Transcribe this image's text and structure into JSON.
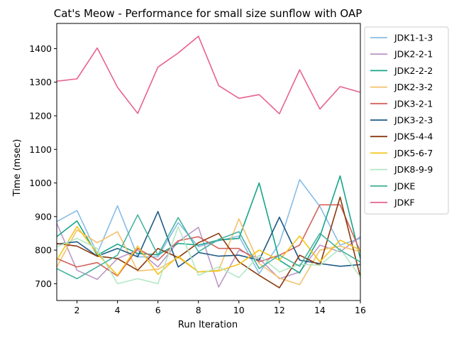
{
  "chart_data": {
    "type": "line",
    "title": "Cat's Meow - Performance for small size sunflow with OAP",
    "xlabel": "Run Iteration",
    "ylabel": "Time (msec)",
    "xlim": [
      1,
      16
    ],
    "ylim": [
      650,
      1475
    ],
    "xticks": [
      2,
      4,
      6,
      8,
      10,
      12,
      14,
      16
    ],
    "yticks": [
      700,
      800,
      900,
      1000,
      1100,
      1200,
      1300,
      1400
    ],
    "grid": false,
    "legend_position": "outside-right",
    "x": [
      1,
      2,
      3,
      4,
      5,
      6,
      7,
      8,
      9,
      10,
      11,
      12,
      13,
      14,
      15,
      16
    ],
    "series": [
      {
        "name": "JDK1-1-3",
        "color": "#88bde6",
        "values": [
          885,
          918,
          790,
          932,
          780,
          780,
          882,
          810,
          828,
          842,
          730,
          820,
          1010,
          930,
          815,
          835
        ]
      },
      {
        "name": "JDK2-2-1",
        "color": "#bc99c7",
        "values": [
          880,
          740,
          713,
          775,
          800,
          750,
          825,
          868,
          690,
          800,
          775,
          715,
          735,
          815,
          795,
          840
        ]
      },
      {
        "name": "JDK2-2-2",
        "color": "#17a589",
        "values": [
          840,
          887,
          785,
          818,
          790,
          786,
          820,
          815,
          830,
          835,
          1000,
          770,
          732,
          840,
          1021,
          775
        ]
      },
      {
        "name": "JDK2-3-2",
        "color": "#f5c16d",
        "values": [
          750,
          860,
          822,
          855,
          738,
          743,
          778,
          735,
          740,
          893,
          760,
          717,
          697,
          800,
          812,
          795
        ]
      },
      {
        "name": "JDK3-2-1",
        "color": "#d4645c",
        "values": [
          775,
          750,
          763,
          723,
          805,
          770,
          828,
          840,
          805,
          805,
          765,
          785,
          815,
          935,
          935,
          795
        ]
      },
      {
        "name": "JDK3-2-3",
        "color": "#1f5a85",
        "values": [
          818,
          825,
          782,
          805,
          780,
          915,
          750,
          793,
          782,
          785,
          770,
          898,
          770,
          760,
          752,
          757
        ]
      },
      {
        "name": "JDK5-4-4",
        "color": "#8b3a0f",
        "values": [
          820,
          812,
          782,
          775,
          740,
          805,
          778,
          822,
          850,
          765,
          725,
          688,
          785,
          755,
          958,
          720
        ]
      },
      {
        "name": "JDK5-6-7",
        "color": "#f5c518",
        "values": [
          770,
          870,
          790,
          725,
          812,
          728,
          782,
          735,
          738,
          758,
          800,
          770,
          842,
          765,
          830,
          800
        ]
      },
      {
        "name": "JDK8-9-9",
        "color": "#b2e8c4",
        "values": [
          810,
          835,
          805,
          700,
          715,
          700,
          870,
          725,
          750,
          718,
          785,
          735,
          758,
          755,
          805,
          720
        ]
      },
      {
        "name": "JDKE",
        "color": "#46b39e",
        "values": [
          745,
          715,
          750,
          785,
          905,
          785,
          897,
          795,
          832,
          855,
          745,
          785,
          752,
          850,
          800,
          765
        ]
      },
      {
        "name": "JDKF",
        "color": "#e8628e",
        "values": [
          1303,
          1310,
          1402,
          1285,
          1207,
          1345,
          1387,
          1437,
          1290,
          1252,
          1263,
          1206,
          1337,
          1220,
          1287,
          1270
        ]
      }
    ]
  }
}
